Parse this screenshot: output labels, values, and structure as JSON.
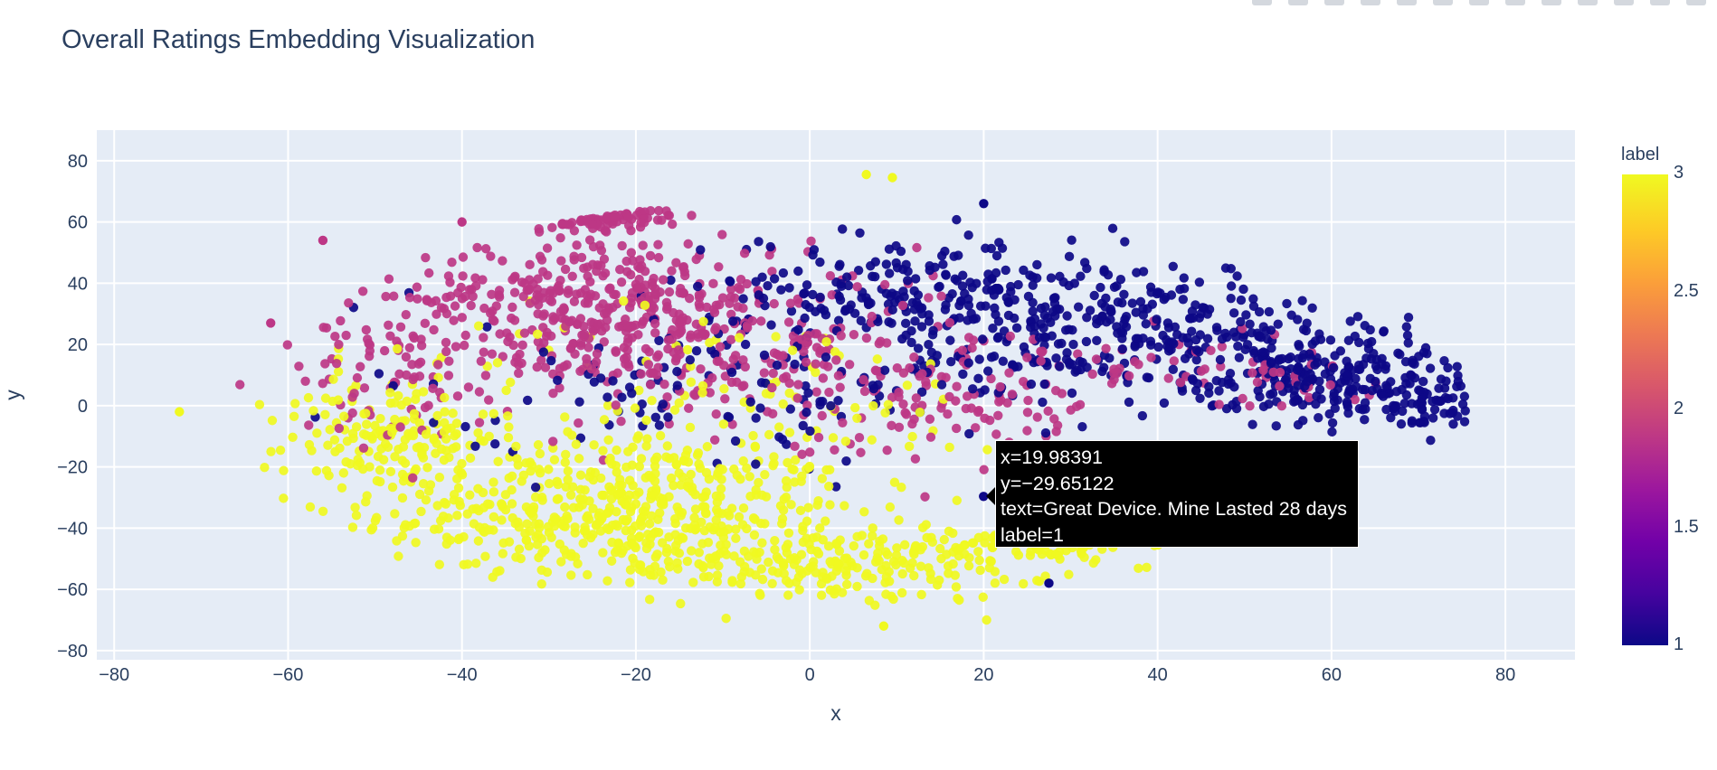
{
  "title": "Overall Ratings Embedding Visualization",
  "tooltip": {
    "line1": "x=19.98391",
    "line2": "y=−29.65122",
    "line3": "text=Great Device. Mine Lasted 28 days",
    "line4": "label=1"
  },
  "colorbar": {
    "title": "label",
    "ticks": [
      "3",
      "2.5",
      "2",
      "1.5",
      "1"
    ],
    "colors": [
      "#0d0887",
      "#46039f",
      "#7201a8",
      "#9c179e",
      "#bd3786",
      "#d8576b",
      "#ed7953",
      "#fb9f3a",
      "#fdca26",
      "#f0f921"
    ]
  },
  "modebar": {
    "icons": [
      "camera-icon",
      "zoom-icon",
      "pan-icon",
      "box-select-icon",
      "lasso-icon",
      "zoom-in-icon",
      "zoom-out-icon",
      "autoscale-icon",
      "reset-axes-icon",
      "spike-lines-icon",
      "hover-closest-icon",
      "hover-compare-icon",
      "plotly-logo-icon"
    ]
  },
  "chart_data": {
    "type": "scatter",
    "title": "Overall Ratings Embedding Visualization",
    "xlabel": "x",
    "ylabel": "y",
    "xlim": [
      -82,
      88
    ],
    "ylim": [
      -83,
      90
    ],
    "xticks": [
      -80,
      -60,
      -40,
      -20,
      0,
      20,
      40,
      60,
      80
    ],
    "yticks": [
      -80,
      -60,
      -40,
      -20,
      0,
      20,
      40,
      60,
      80
    ],
    "grid": true,
    "color_by": "label",
    "color_range": [
      1,
      3
    ],
    "plot_bg": "#e5ecf6",
    "clusters": [
      {
        "label": 3,
        "color": "#f0f921",
        "center": [
          -22,
          -35
        ],
        "spread": [
          18,
          16
        ],
        "count": 520
      },
      {
        "label": 3,
        "color": "#f0f921",
        "center": [
          5,
          -52
        ],
        "spread": [
          15,
          8
        ],
        "count": 220
      },
      {
        "label": 3,
        "color": "#f0f921",
        "center": [
          -48,
          -10
        ],
        "spread": [
          8,
          14
        ],
        "count": 160
      },
      {
        "label": 3,
        "color": "#f0f921",
        "center": [
          28,
          -45
        ],
        "spread": [
          7,
          4
        ],
        "count": 60
      },
      {
        "label": 3,
        "color": "#f0f921",
        "center": [
          -10,
          0
        ],
        "spread": [
          25,
          22
        ],
        "count": 110
      },
      {
        "label": 2,
        "color": "#bd3786",
        "center": [
          -25,
          35
        ],
        "spread": [
          14,
          14
        ],
        "count": 330
      },
      {
        "label": 2,
        "color": "#bd3786",
        "center": [
          -8,
          18
        ],
        "spread": [
          18,
          18
        ],
        "count": 240
      },
      {
        "label": 2,
        "color": "#bd3786",
        "center": [
          -28,
          70
        ],
        "spread": [
          6,
          5
        ],
        "count": 70
      },
      {
        "label": 2,
        "color": "#bd3786",
        "center": [
          -48,
          10
        ],
        "spread": [
          9,
          18
        ],
        "count": 90
      },
      {
        "label": 2,
        "color": "#bd3786",
        "center": [
          20,
          0
        ],
        "spread": [
          16,
          14
        ],
        "count": 110
      },
      {
        "label": 2,
        "color": "#bd3786",
        "center": [
          50,
          10
        ],
        "spread": [
          14,
          8
        ],
        "count": 55
      },
      {
        "label": 1,
        "color": "#0d0887",
        "center": [
          35,
          25
        ],
        "spread": [
          15,
          14
        ],
        "count": 300
      },
      {
        "label": 1,
        "color": "#0d0887",
        "center": [
          60,
          10
        ],
        "spread": [
          10,
          11
        ],
        "count": 250
      },
      {
        "label": 1,
        "color": "#0d0887",
        "center": [
          10,
          35
        ],
        "spread": [
          14,
          13
        ],
        "count": 210
      },
      {
        "label": 1,
        "color": "#0d0887",
        "center": [
          72,
          0
        ],
        "spread": [
          5,
          6
        ],
        "count": 50
      },
      {
        "label": 1,
        "color": "#0d0887",
        "center": [
          -10,
          5
        ],
        "spread": [
          20,
          18
        ],
        "count": 120
      }
    ],
    "outliers": [
      {
        "x": -72.5,
        "y": -2,
        "label": 3
      },
      {
        "x": 6.5,
        "y": 75.5,
        "label": 3
      },
      {
        "x": 9.5,
        "y": 74.5,
        "label": 3
      },
      {
        "x": 8.5,
        "y": -72,
        "label": 3
      },
      {
        "x": 27.5,
        "y": -58,
        "label": 1
      },
      {
        "x": 20,
        "y": 66,
        "label": 1
      },
      {
        "x": -40,
        "y": 60,
        "label": 2
      },
      {
        "x": -56,
        "y": 54,
        "label": 2
      },
      {
        "x": -62,
        "y": 27,
        "label": 2
      }
    ],
    "hovered_point": {
      "x": 19.98391,
      "y": -29.65122,
      "label": 1,
      "text": "Great Device. Mine Lasted 28 days"
    }
  }
}
